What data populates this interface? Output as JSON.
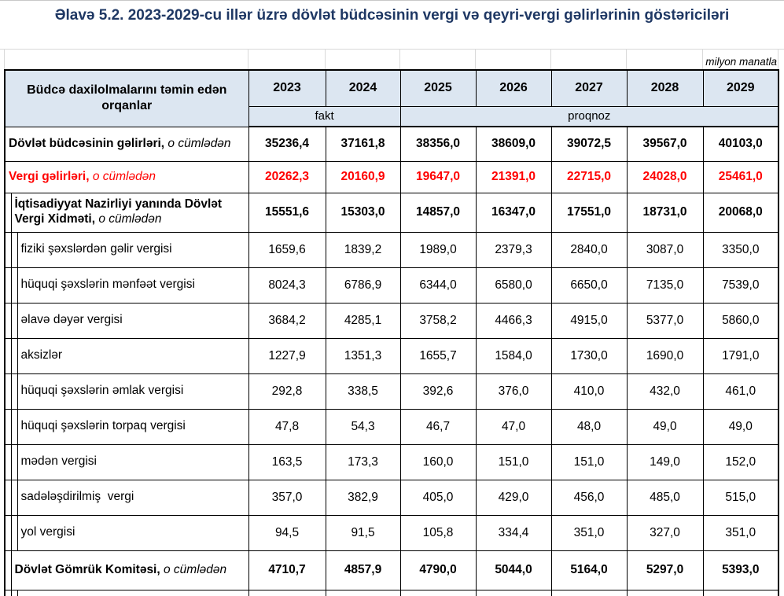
{
  "page": {
    "title": "Əlavə 5.2. 2023-2029-cu illər üzrə dövlət büdcəsinin vergi və qeyri-vergi gəlirlərinin göstəriciləri",
    "unit_note": "milyon manatla"
  },
  "colors": {
    "title_navy": "#1F3864",
    "header_fill": "#dce6f1",
    "highlight_red": "#FF0000",
    "border_black": "#000000"
  },
  "table": {
    "corner_header": "Büdcə daxilolmalarını təmin edən orqanlar",
    "years": [
      "2023",
      "2024",
      "2025",
      "2026",
      "2027",
      "2028",
      "2029"
    ],
    "fact_label": "fakt",
    "forecast_label": "proqnoz",
    "rows": [
      {
        "label": "Dövlət büdcəsinin gəlirləri,",
        "suffix": " o cümlədən",
        "indent": 0,
        "style": "total",
        "values": [
          "35236,4",
          "37161,8",
          "38356,0",
          "38609,0",
          "39072,5",
          "39567,0",
          "40103,0"
        ]
      },
      {
        "label": "Vergi gəlirləri,",
        "suffix": " o cümlədən",
        "indent": 0,
        "style": "red",
        "values": [
          "20262,3",
          "20160,9",
          "19647,0",
          "21391,0",
          "22715,0",
          "24028,0",
          "25461,0"
        ]
      },
      {
        "label": "İqtisadiyyat Nazirliyi yanında Dövlət Vergi Xidməti,",
        "suffix": " o cümlədən",
        "indent": 1,
        "style": "agency",
        "values": [
          "15551,6",
          "15303,0",
          "14857,0",
          "16347,0",
          "17551,0",
          "18731,0",
          "20068,0"
        ]
      },
      {
        "label": "fiziki şəxslərdən gəlir vergisi",
        "suffix": "",
        "indent": 2,
        "style": "sub",
        "values": [
          "1659,6",
          "1839,2",
          "1989,0",
          "2379,3",
          "2840,0",
          "3087,0",
          "3350,0"
        ]
      },
      {
        "label": "hüquqi şəxslərin mənfəət vergisi",
        "suffix": "",
        "indent": 2,
        "style": "sub",
        "values": [
          "8024,3",
          "6786,9",
          "6344,0",
          "6580,0",
          "6650,0",
          "7135,0",
          "7539,0"
        ]
      },
      {
        "label": "əlavə dəyər vergisi",
        "suffix": "",
        "indent": 2,
        "style": "sub",
        "values": [
          "3684,2",
          "4285,1",
          "3758,2",
          "4466,3",
          "4915,0",
          "5377,0",
          "5860,0"
        ]
      },
      {
        "label": "aksizlər",
        "suffix": "",
        "indent": 2,
        "style": "sub",
        "values": [
          "1227,9",
          "1351,3",
          "1655,7",
          "1584,0",
          "1730,0",
          "1690,0",
          "1791,0"
        ]
      },
      {
        "label": "hüquqi şəxslərin əmlak vergisi",
        "suffix": "",
        "indent": 2,
        "style": "sub",
        "values": [
          "292,8",
          "338,5",
          "392,6",
          "376,0",
          "410,0",
          "432,0",
          "461,0"
        ]
      },
      {
        "label": "hüquqi şəxslərin torpaq vergisi",
        "suffix": "",
        "indent": 2,
        "style": "sub",
        "values": [
          "47,8",
          "54,3",
          "46,7",
          "47,0",
          "48,0",
          "49,0",
          "49,0"
        ]
      },
      {
        "label": "mədən vergisi",
        "suffix": "",
        "indent": 2,
        "style": "sub",
        "values": [
          "163,5",
          "173,3",
          "160,0",
          "151,0",
          "151,0",
          "149,0",
          "152,0"
        ]
      },
      {
        "label": "sadələşdirilmiş  vergi",
        "suffix": "",
        "indent": 2,
        "style": "sub",
        "values": [
          "357,0",
          "382,9",
          "405,0",
          "429,0",
          "456,0",
          "485,0",
          "515,0"
        ]
      },
      {
        "label": "yol vergisi",
        "suffix": "",
        "indent": 2,
        "style": "sub",
        "values": [
          "94,5",
          "91,5",
          "105,8",
          "334,4",
          "351,0",
          "327,0",
          "351,0"
        ]
      },
      {
        "label": "Dövlət Gömrük Komitəsi,",
        "suffix": " o cümlədən",
        "indent": 1,
        "style": "customs",
        "values": [
          "4710,7",
          "4857,9",
          "4790,0",
          "5044,0",
          "5164,0",
          "5297,0",
          "5393,0"
        ]
      }
    ]
  }
}
